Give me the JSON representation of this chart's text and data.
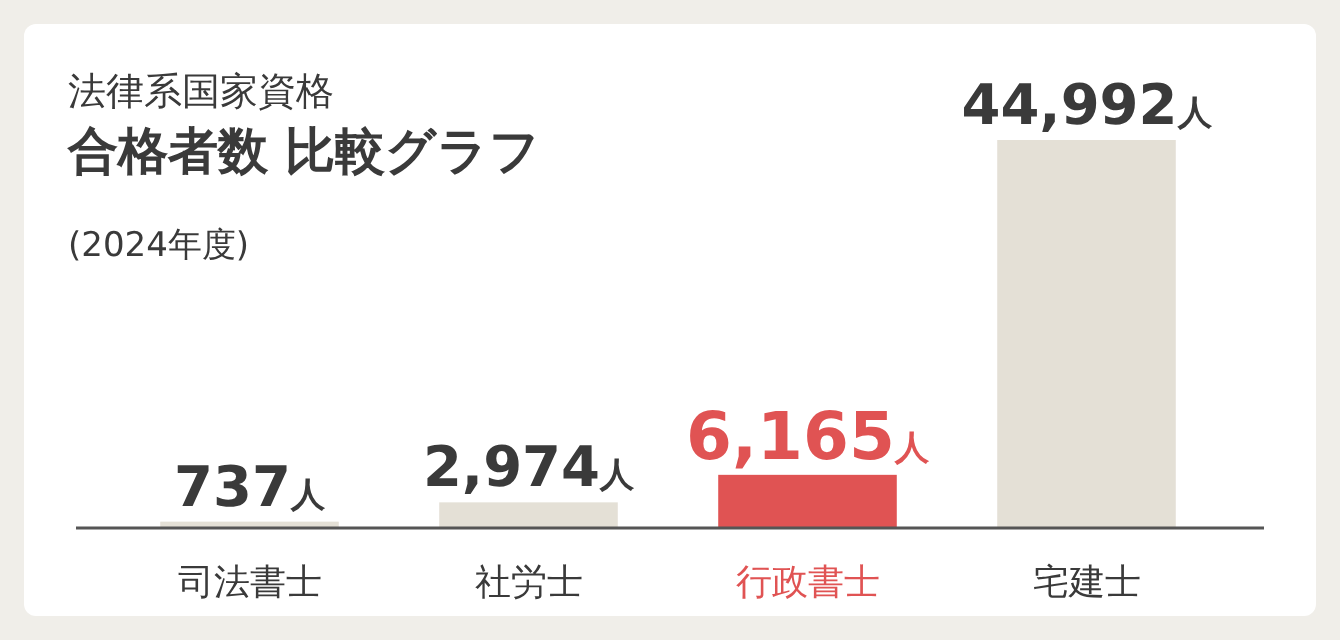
{
  "chart_data": {
    "type": "bar",
    "title": "法律系国家資格",
    "subtitle": "合格者数 比較グラフ",
    "annotations": [
      "(2024年度)"
    ],
    "categories": [
      "司法書士",
      "社労士",
      "行政書士",
      "宅建士"
    ],
    "values": [
      737,
      2974,
      6165,
      44992
    ],
    "colors": [
      "#e4e0d6",
      "#e4e0d6",
      "#e05353",
      "#e4e0d6"
    ],
    "value_labels": [
      "737人",
      "2,974人",
      "6,165人",
      "44,992人"
    ]
  }
}
